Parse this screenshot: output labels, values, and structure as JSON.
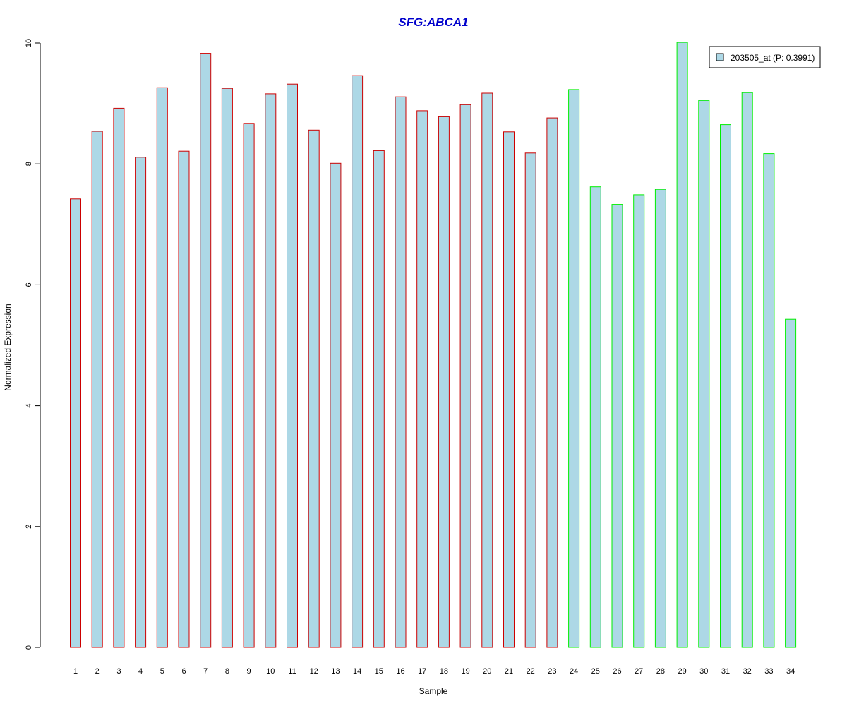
{
  "chart_data": {
    "type": "bar",
    "title": "SFG:ABCA1",
    "xlabel": "Sample",
    "ylabel": "Normalized Expression",
    "ylim": [
      0,
      10
    ],
    "y_ticks": [
      0,
      2,
      4,
      6,
      8,
      10
    ],
    "categories": [
      "1",
      "2",
      "3",
      "4",
      "5",
      "6",
      "7",
      "8",
      "9",
      "10",
      "11",
      "12",
      "13",
      "14",
      "15",
      "16",
      "17",
      "18",
      "19",
      "20",
      "21",
      "22",
      "23",
      "24",
      "25",
      "26",
      "27",
      "28",
      "29",
      "30",
      "31",
      "32",
      "33",
      "34"
    ],
    "series": [
      {
        "name": "203505_at (P: 0.3991)",
        "values": [
          7.42,
          8.54,
          8.92,
          8.11,
          9.26,
          8.21,
          9.83,
          9.25,
          8.67,
          9.16,
          9.32,
          8.56,
          8.01,
          9.46,
          8.22,
          9.11,
          8.88,
          8.78,
          8.98,
          9.17,
          8.53,
          8.18,
          8.76,
          9.23,
          7.62,
          7.33,
          7.49,
          7.58,
          10.01,
          9.05,
          8.65,
          9.18,
          8.17,
          5.43
        ],
        "group": [
          "1",
          "1",
          "1",
          "1",
          "1",
          "1",
          "1",
          "1",
          "1",
          "1",
          "1",
          "1",
          "1",
          "1",
          "1",
          "1",
          "1",
          "1",
          "1",
          "1",
          "1",
          "1",
          "1",
          "2",
          "2",
          "2",
          "2",
          "2",
          "2",
          "2",
          "2",
          "2",
          "2",
          "2"
        ]
      }
    ],
    "colors": {
      "fill": "#add8e6",
      "group_borders": {
        "1": "#cc0000",
        "2": "#00ee00"
      },
      "title": "#0000cc"
    },
    "legend": {
      "label": "203505_at (P: 0.3991)",
      "position": "top-right"
    },
    "grid": false
  }
}
